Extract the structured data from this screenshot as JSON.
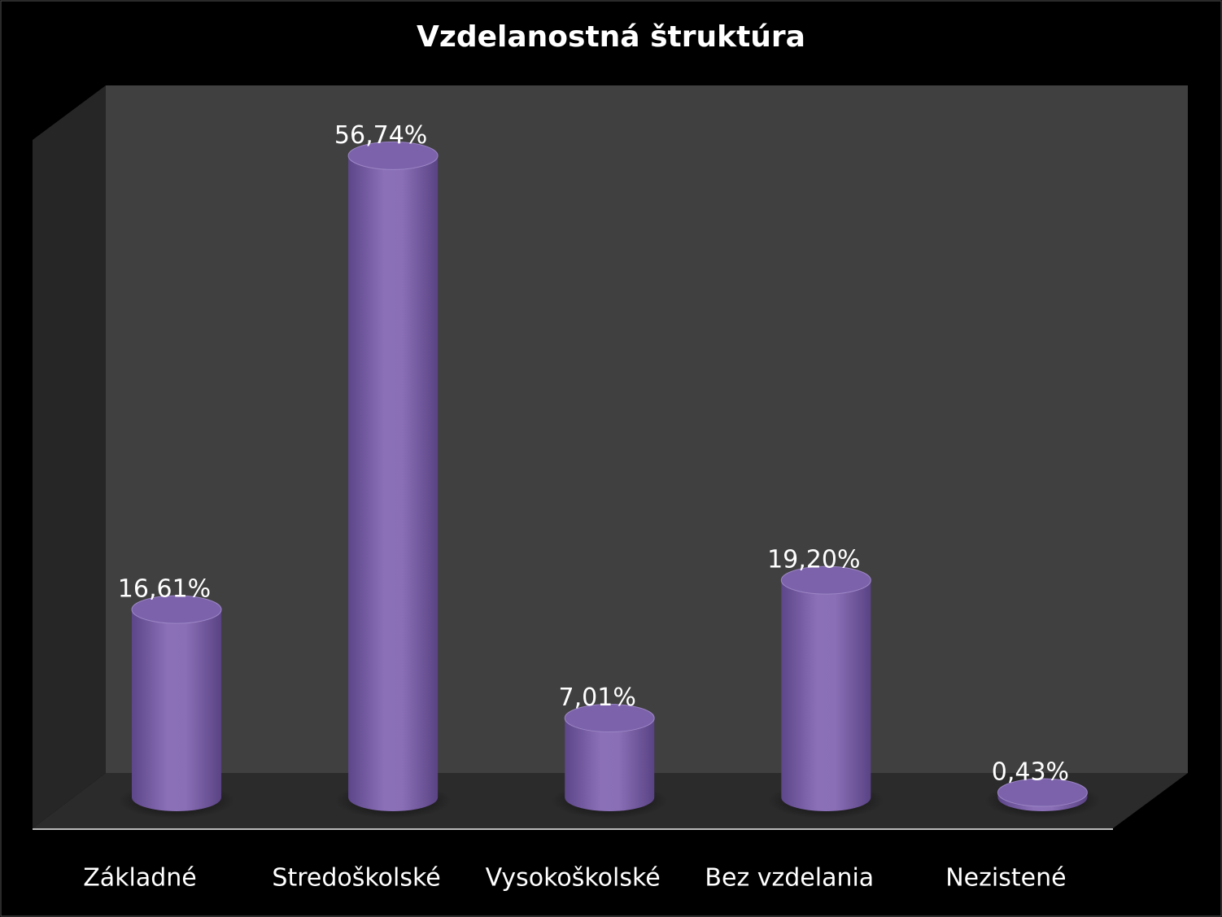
{
  "chart_data": {
    "type": "bar3d",
    "title": "Vzdelanostná štruktúra",
    "categories": [
      "Základné",
      "Stredoškolské",
      "Vysokoškolské",
      "Bez vzdelania",
      "Nezistené"
    ],
    "values": [
      16.61,
      56.74,
      7.01,
      19.2,
      0.43
    ],
    "value_labels": [
      "16,61%",
      "56,74%",
      "7,01%",
      "19,20%",
      "0,43%"
    ],
    "color": "#7b62aa"
  }
}
